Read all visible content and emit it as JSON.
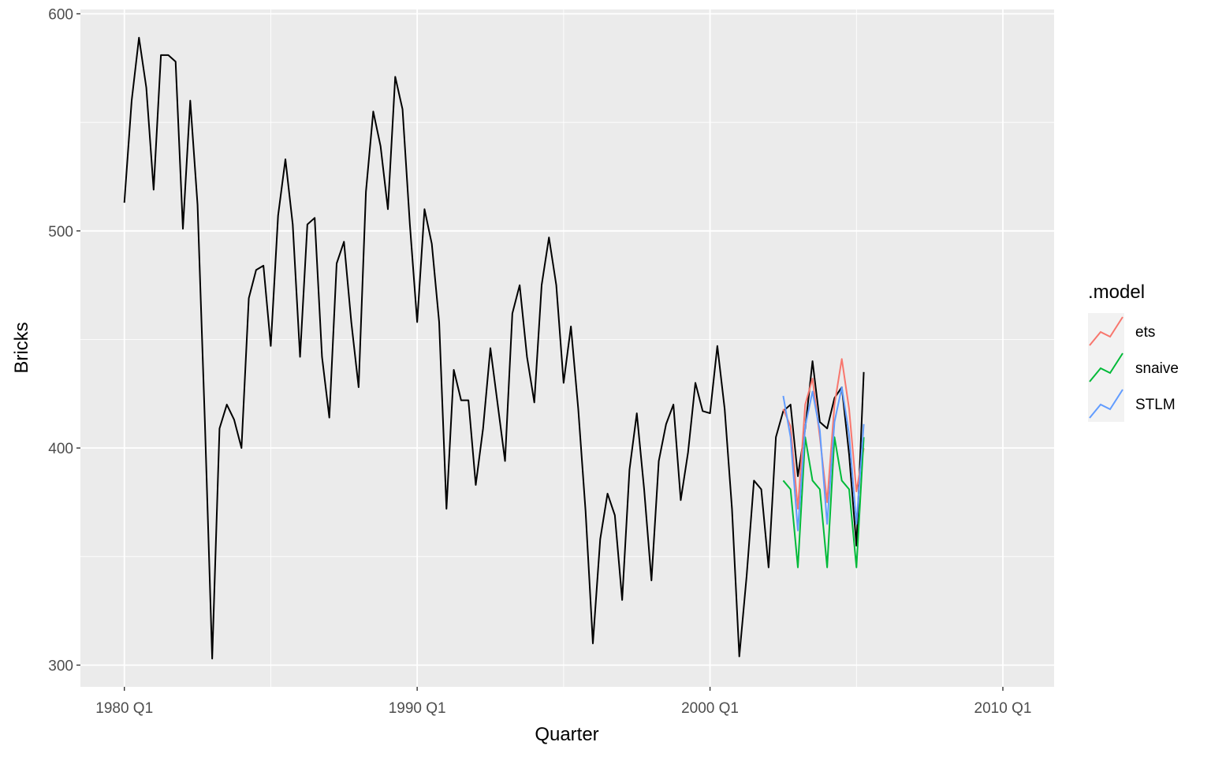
{
  "chart_data": {
    "type": "line",
    "title": "",
    "xlabel": "Quarter",
    "ylabel": "Bricks",
    "xlim": [
      1978.5,
      2011.75
    ],
    "ylim": [
      290,
      602
    ],
    "x_ticks": [
      {
        "value": 1980,
        "label": "1980 Q1"
      },
      {
        "value": 1990,
        "label": "1990 Q1"
      },
      {
        "value": 2000,
        "label": "2000 Q1"
      },
      {
        "value": 2010,
        "label": "2010 Q1"
      }
    ],
    "y_ticks": [
      300,
      400,
      500,
      600
    ],
    "grid": true,
    "legend": {
      "title": ".model",
      "position": "right",
      "entries": [
        {
          "label": "ets",
          "color": "#F8766D"
        },
        {
          "label": "snaive",
          "color": "#00BA38"
        },
        {
          "label": "STLM",
          "color": "#619CFF"
        }
      ]
    },
    "series": [
      {
        "color": "#000000",
        "x": [
          1980,
          1980.25,
          1980.5,
          1980.75,
          1981,
          1981.25,
          1981.5,
          1981.75,
          1982,
          1982.25,
          1982.5,
          1982.75,
          1983,
          1983.25,
          1983.5,
          1983.75,
          1984,
          1984.25,
          1984.5,
          1984.75,
          1985,
          1985.25,
          1985.5,
          1985.75,
          1986,
          1986.25,
          1986.5,
          1986.75,
          1987,
          1987.25,
          1987.5,
          1987.75,
          1988,
          1988.25,
          1988.5,
          1988.75,
          1989,
          1989.25,
          1989.5,
          1989.75,
          1990,
          1990.25,
          1990.5,
          1990.75,
          1991,
          1991.25,
          1991.5,
          1991.75,
          1992,
          1992.25,
          1992.5,
          1992.75,
          1993,
          1993.25,
          1993.5,
          1993.75,
          1994,
          1994.25,
          1994.5,
          1994.75,
          1995,
          1995.25,
          1995.5,
          1995.75,
          1996,
          1996.25,
          1996.5,
          1996.75,
          1997,
          1997.25,
          1997.5,
          1997.75,
          1998,
          1998.25,
          1998.5,
          1998.75,
          1999,
          1999.25,
          1999.5,
          1999.75,
          2000,
          2000.25,
          2000.5,
          2000.75,
          2001,
          2001.25,
          2001.5,
          2001.75,
          2002,
          2002.25,
          2002.5,
          2002.75,
          2003,
          2003.25,
          2003.5,
          2003.75,
          2004,
          2004.25,
          2004.5,
          2004.75,
          2005,
          2005.25
        ],
        "values": [
          513,
          560,
          589,
          566,
          519,
          581,
          581,
          578,
          501,
          560,
          512,
          412,
          303,
          409,
          420,
          413,
          400,
          469,
          482,
          484,
          447,
          507,
          533,
          503,
          442,
          503,
          506,
          442,
          414,
          485,
          495,
          458,
          428,
          518,
          555,
          539,
          510,
          571,
          556,
          503,
          458,
          510,
          494,
          458,
          372,
          436,
          422,
          422,
          383,
          409,
          446,
          420,
          394,
          462,
          475,
          442,
          421,
          475,
          497,
          475,
          430,
          456,
          418,
          371,
          310,
          358,
          379,
          369,
          330,
          390,
          416,
          381,
          339,
          394,
          411,
          420,
          376,
          398,
          430,
          417,
          416,
          447,
          418,
          372,
          304,
          341,
          385,
          381,
          345,
          405,
          417,
          420,
          387,
          409,
          440,
          412,
          409,
          423,
          428,
          397,
          355,
          435
        ]
      },
      {
        "name": "ets",
        "color": "#F8766D",
        "x": [
          2002.5,
          2002.75,
          2003,
          2003.25,
          2003.5,
          2003.75,
          2004,
          2004.25,
          2004.5,
          2004.75,
          2005,
          2005.25
        ],
        "values": [
          418,
          410,
          372,
          420,
          432,
          405,
          375,
          420,
          441,
          418,
          380,
          400
        ]
      },
      {
        "name": "snaive",
        "color": "#00BA38",
        "x": [
          2002.5,
          2002.75,
          2003,
          2003.25,
          2003.5,
          2003.75,
          2004,
          2004.25,
          2004.5,
          2004.75,
          2005,
          2005.25
        ],
        "values": [
          385,
          381,
          345,
          405,
          385,
          381,
          345,
          405,
          385,
          381,
          345,
          405
        ]
      },
      {
        "name": "STLM",
        "color": "#619CFF",
        "x": [
          2002.5,
          2002.75,
          2003,
          2003.25,
          2003.5,
          2003.75,
          2004,
          2004.25,
          2004.5,
          2004.75,
          2005,
          2005.25
        ],
        "values": [
          424,
          405,
          362,
          410,
          426,
          408,
          365,
          412,
          428,
          406,
          365,
          411
        ]
      }
    ]
  }
}
